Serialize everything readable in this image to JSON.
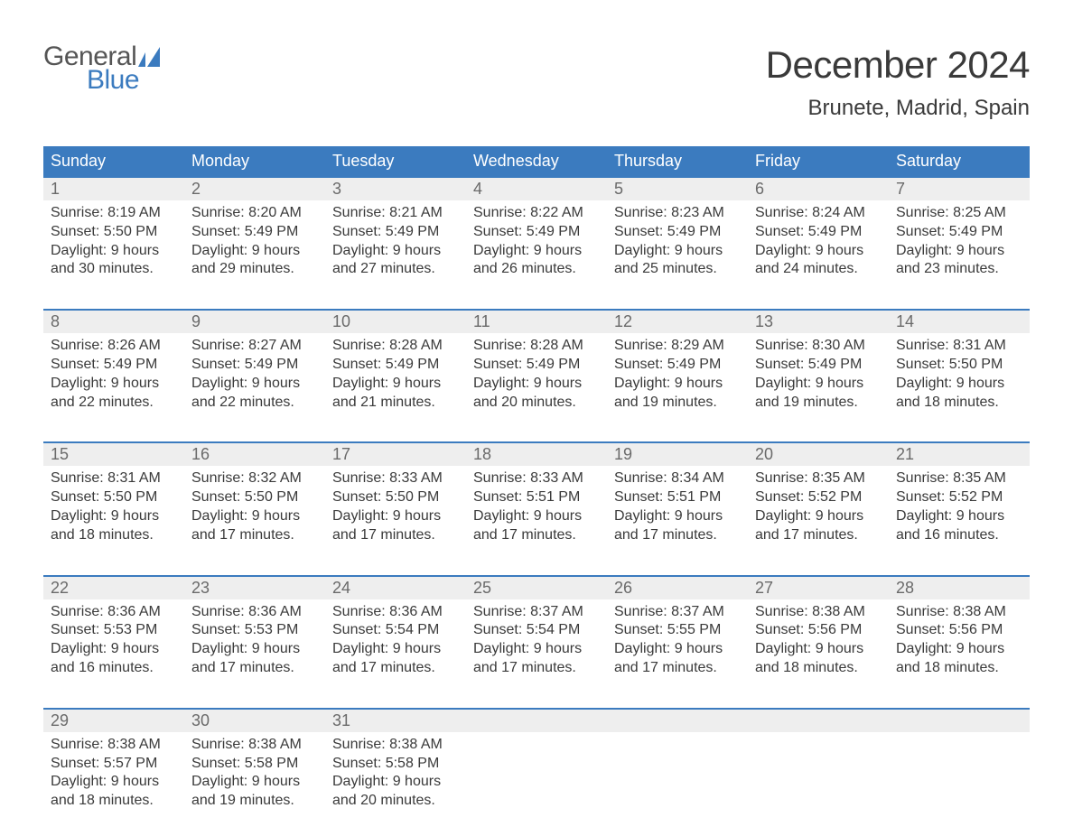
{
  "logo": {
    "general": "General",
    "blue": "Blue",
    "flag_color": "#3b7bbf"
  },
  "title": "December 2024",
  "location": "Brunete, Madrid, Spain",
  "colors": {
    "header_bg": "#3b7bbf",
    "header_text": "#ffffff",
    "daynum_bg": "#eeeeee",
    "daynum_text": "#6a6a6a",
    "text": "#3a3a3a",
    "week_border": "#3b7bbf",
    "background": "#ffffff"
  },
  "day_labels": [
    "Sunday",
    "Monday",
    "Tuesday",
    "Wednesday",
    "Thursday",
    "Friday",
    "Saturday"
  ],
  "weeks": [
    [
      {
        "n": "1",
        "sunrise": "8:19 AM",
        "sunset": "5:50 PM",
        "dl1": "Daylight: 9 hours",
        "dl2": "and 30 minutes."
      },
      {
        "n": "2",
        "sunrise": "8:20 AM",
        "sunset": "5:49 PM",
        "dl1": "Daylight: 9 hours",
        "dl2": "and 29 minutes."
      },
      {
        "n": "3",
        "sunrise": "8:21 AM",
        "sunset": "5:49 PM",
        "dl1": "Daylight: 9 hours",
        "dl2": "and 27 minutes."
      },
      {
        "n": "4",
        "sunrise": "8:22 AM",
        "sunset": "5:49 PM",
        "dl1": "Daylight: 9 hours",
        "dl2": "and 26 minutes."
      },
      {
        "n": "5",
        "sunrise": "8:23 AM",
        "sunset": "5:49 PM",
        "dl1": "Daylight: 9 hours",
        "dl2": "and 25 minutes."
      },
      {
        "n": "6",
        "sunrise": "8:24 AM",
        "sunset": "5:49 PM",
        "dl1": "Daylight: 9 hours",
        "dl2": "and 24 minutes."
      },
      {
        "n": "7",
        "sunrise": "8:25 AM",
        "sunset": "5:49 PM",
        "dl1": "Daylight: 9 hours",
        "dl2": "and 23 minutes."
      }
    ],
    [
      {
        "n": "8",
        "sunrise": "8:26 AM",
        "sunset": "5:49 PM",
        "dl1": "Daylight: 9 hours",
        "dl2": "and 22 minutes."
      },
      {
        "n": "9",
        "sunrise": "8:27 AM",
        "sunset": "5:49 PM",
        "dl1": "Daylight: 9 hours",
        "dl2": "and 22 minutes."
      },
      {
        "n": "10",
        "sunrise": "8:28 AM",
        "sunset": "5:49 PM",
        "dl1": "Daylight: 9 hours",
        "dl2": "and 21 minutes."
      },
      {
        "n": "11",
        "sunrise": "8:28 AM",
        "sunset": "5:49 PM",
        "dl1": "Daylight: 9 hours",
        "dl2": "and 20 minutes."
      },
      {
        "n": "12",
        "sunrise": "8:29 AM",
        "sunset": "5:49 PM",
        "dl1": "Daylight: 9 hours",
        "dl2": "and 19 minutes."
      },
      {
        "n": "13",
        "sunrise": "8:30 AM",
        "sunset": "5:49 PM",
        "dl1": "Daylight: 9 hours",
        "dl2": "and 19 minutes."
      },
      {
        "n": "14",
        "sunrise": "8:31 AM",
        "sunset": "5:50 PM",
        "dl1": "Daylight: 9 hours",
        "dl2": "and 18 minutes."
      }
    ],
    [
      {
        "n": "15",
        "sunrise": "8:31 AM",
        "sunset": "5:50 PM",
        "dl1": "Daylight: 9 hours",
        "dl2": "and 18 minutes."
      },
      {
        "n": "16",
        "sunrise": "8:32 AM",
        "sunset": "5:50 PM",
        "dl1": "Daylight: 9 hours",
        "dl2": "and 17 minutes."
      },
      {
        "n": "17",
        "sunrise": "8:33 AM",
        "sunset": "5:50 PM",
        "dl1": "Daylight: 9 hours",
        "dl2": "and 17 minutes."
      },
      {
        "n": "18",
        "sunrise": "8:33 AM",
        "sunset": "5:51 PM",
        "dl1": "Daylight: 9 hours",
        "dl2": "and 17 minutes."
      },
      {
        "n": "19",
        "sunrise": "8:34 AM",
        "sunset": "5:51 PM",
        "dl1": "Daylight: 9 hours",
        "dl2": "and 17 minutes."
      },
      {
        "n": "20",
        "sunrise": "8:35 AM",
        "sunset": "5:52 PM",
        "dl1": "Daylight: 9 hours",
        "dl2": "and 17 minutes."
      },
      {
        "n": "21",
        "sunrise": "8:35 AM",
        "sunset": "5:52 PM",
        "dl1": "Daylight: 9 hours",
        "dl2": "and 16 minutes."
      }
    ],
    [
      {
        "n": "22",
        "sunrise": "8:36 AM",
        "sunset": "5:53 PM",
        "dl1": "Daylight: 9 hours",
        "dl2": "and 16 minutes."
      },
      {
        "n": "23",
        "sunrise": "8:36 AM",
        "sunset": "5:53 PM",
        "dl1": "Daylight: 9 hours",
        "dl2": "and 17 minutes."
      },
      {
        "n": "24",
        "sunrise": "8:36 AM",
        "sunset": "5:54 PM",
        "dl1": "Daylight: 9 hours",
        "dl2": "and 17 minutes."
      },
      {
        "n": "25",
        "sunrise": "8:37 AM",
        "sunset": "5:54 PM",
        "dl1": "Daylight: 9 hours",
        "dl2": "and 17 minutes."
      },
      {
        "n": "26",
        "sunrise": "8:37 AM",
        "sunset": "5:55 PM",
        "dl1": "Daylight: 9 hours",
        "dl2": "and 17 minutes."
      },
      {
        "n": "27",
        "sunrise": "8:38 AM",
        "sunset": "5:56 PM",
        "dl1": "Daylight: 9 hours",
        "dl2": "and 18 minutes."
      },
      {
        "n": "28",
        "sunrise": "8:38 AM",
        "sunset": "5:56 PM",
        "dl1": "Daylight: 9 hours",
        "dl2": "and 18 minutes."
      }
    ],
    [
      {
        "n": "29",
        "sunrise": "8:38 AM",
        "sunset": "5:57 PM",
        "dl1": "Daylight: 9 hours",
        "dl2": "and 18 minutes."
      },
      {
        "n": "30",
        "sunrise": "8:38 AM",
        "sunset": "5:58 PM",
        "dl1": "Daylight: 9 hours",
        "dl2": "and 19 minutes."
      },
      {
        "n": "31",
        "sunrise": "8:38 AM",
        "sunset": "5:58 PM",
        "dl1": "Daylight: 9 hours",
        "dl2": "and 20 minutes."
      },
      null,
      null,
      null,
      null
    ]
  ],
  "labels": {
    "sunrise_prefix": "Sunrise: ",
    "sunset_prefix": "Sunset: "
  }
}
